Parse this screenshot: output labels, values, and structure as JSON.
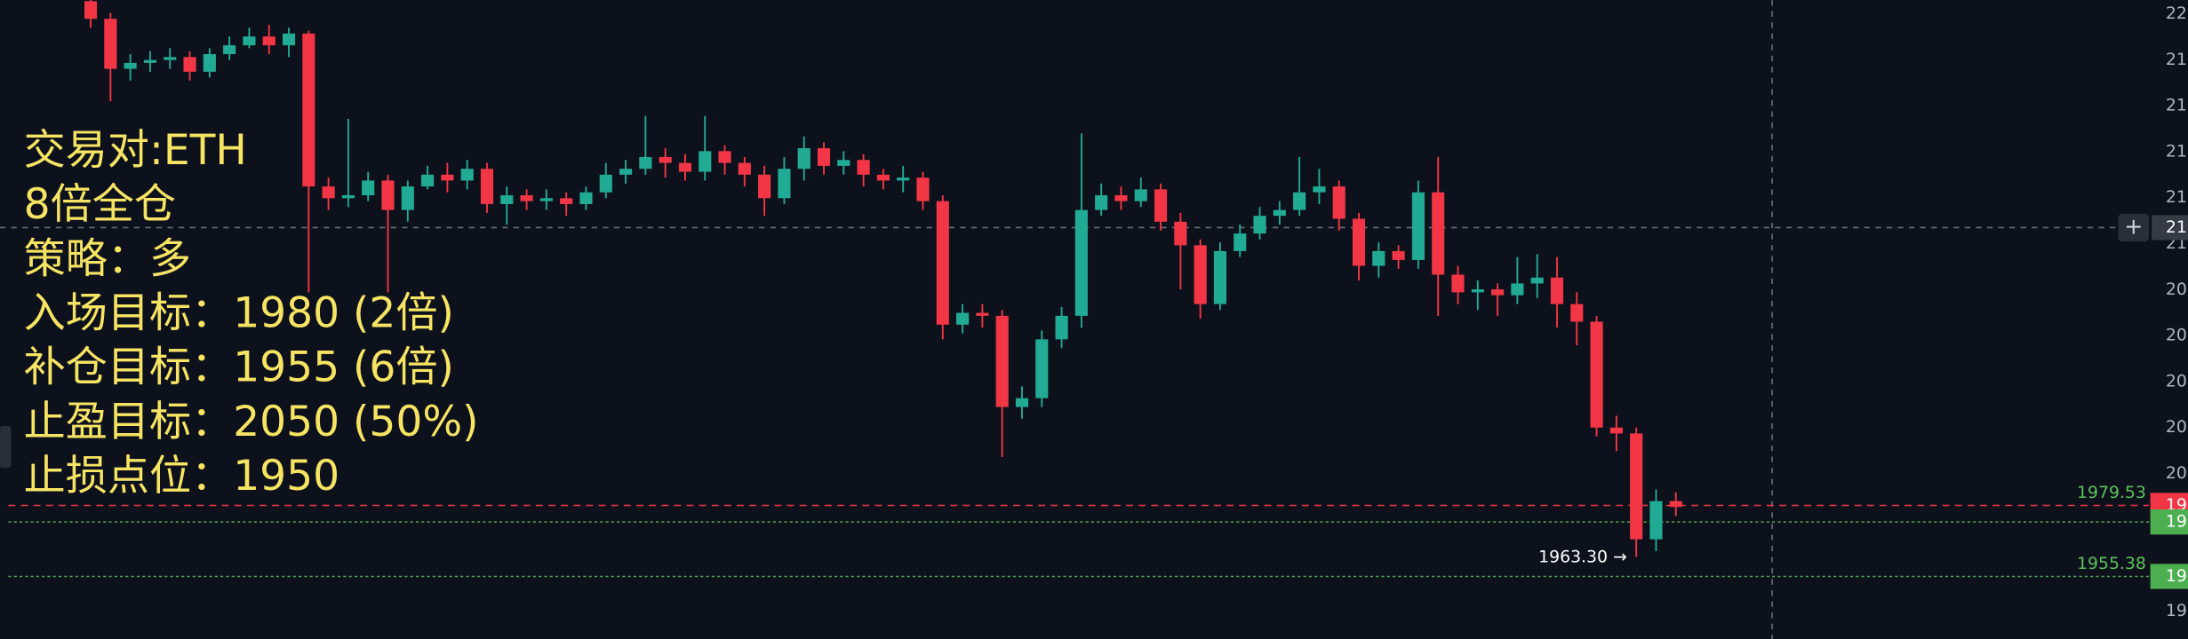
{
  "chart_data": {
    "type": "candlestick",
    "up_color": "#22ab94",
    "down_color": "#f23645",
    "ylim": [
      1934.1,
      2151.4
    ],
    "open": [
      2151,
      2145,
      2128,
      2130,
      2131,
      2132,
      2127,
      2133,
      2136,
      2139,
      2136,
      2140,
      2088,
      2084,
      2085,
      2090,
      2080,
      2088,
      2092,
      2090,
      2094,
      2082,
      2085,
      2083,
      2084,
      2082,
      2086,
      2092,
      2094,
      2098,
      2096,
      2093,
      2100,
      2096,
      2092,
      2084,
      2094,
      2101,
      2095,
      2097,
      2092,
      2090,
      2091,
      2083,
      2041,
      2045,
      2044,
      2013,
      2016,
      2036,
      2044,
      2080,
      2085,
      2083,
      2087,
      2076,
      2068,
      2048,
      2066,
      2072,
      2078,
      2080,
      2086,
      2088,
      2077,
      2061,
      2066,
      2063,
      2086,
      2058,
      2052,
      2053,
      2051,
      2055,
      2057,
      2048,
      2042,
      2006,
      2004,
      1968,
      1981
    ],
    "high": [
      2153,
      2147,
      2133,
      2134,
      2135,
      2134,
      2135,
      2139,
      2142,
      2143,
      2142,
      2141,
      2091,
      2111,
      2093,
      2092,
      2090,
      2095,
      2096,
      2097,
      2096,
      2088,
      2087,
      2087,
      2086,
      2088,
      2096,
      2097,
      2112,
      2101,
      2099,
      2112,
      2102,
      2098,
      2095,
      2098,
      2105,
      2103,
      2100,
      2099,
      2094,
      2095,
      2093,
      2085,
      2048,
      2048,
      2046,
      2020,
      2039,
      2047,
      2106,
      2089,
      2088,
      2091,
      2089,
      2079,
      2070,
      2069,
      2075,
      2081,
      2083,
      2098,
      2094,
      2090,
      2079,
      2069,
      2068,
      2090,
      2098,
      2061,
      2056,
      2055,
      2064,
      2065,
      2064,
      2052,
      2044,
      2010,
      2006,
      1985,
      1984
    ],
    "low": [
      2142,
      2117,
      2124,
      2127,
      2128,
      2124,
      2125,
      2131,
      2135,
      2133,
      2132,
      2052,
      2080,
      2081,
      2083,
      2052,
      2076,
      2087,
      2086,
      2087,
      2079,
      2075,
      2080,
      2080,
      2078,
      2080,
      2084,
      2089,
      2092,
      2091,
      2090,
      2090,
      2092,
      2088,
      2078,
      2082,
      2090,
      2092,
      2092,
      2088,
      2087,
      2086,
      2080,
      2036,
      2038,
      2040,
      1996,
      2009,
      2013,
      2033,
      2040,
      2078,
      2080,
      2081,
      2073,
      2053,
      2043,
      2046,
      2064,
      2070,
      2075,
      2078,
      2082,
      2073,
      2056,
      2057,
      2060,
      2060,
      2044,
      2048,
      2046,
      2044,
      2048,
      2050,
      2040,
      2034,
      2003,
      1998,
      1962,
      1964,
      1976
    ],
    "close": [
      2145,
      2128,
      2130,
      2131,
      2132,
      2127,
      2133,
      2136,
      2139,
      2136,
      2140,
      2088,
      2084,
      2085,
      2090,
      2080,
      2088,
      2092,
      2090,
      2094,
      2082,
      2085,
      2083,
      2084,
      2082,
      2086,
      2092,
      2094,
      2098,
      2096,
      2093,
      2100,
      2096,
      2092,
      2084,
      2094,
      2101,
      2095,
      2097,
      2092,
      2090,
      2091,
      2083,
      2041,
      2045,
      2044,
      2013,
      2016,
      2036,
      2044,
      2080,
      2085,
      2083,
      2087,
      2076,
      2068,
      2048,
      2066,
      2072,
      2078,
      2080,
      2086,
      2088,
      2077,
      2061,
      2066,
      2063,
      2086,
      2058,
      2052,
      2053,
      2051,
      2055,
      2057,
      2048,
      2042,
      2006,
      2004,
      1968,
      1981,
      1979
    ],
    "price_lines": [
      {
        "price": 1979.53,
        "label": "1979.53",
        "axis_label": "19",
        "color": "#f23645",
        "style": "dashed"
      },
      {
        "price": 1973.9,
        "axis_label": "19",
        "color": "#4caf50",
        "style": "dotted"
      },
      {
        "price": 1955.38,
        "label": "1955.38",
        "axis_label": "19",
        "color": "#4caf50",
        "style": "dotted"
      }
    ],
    "crosshair": {
      "price": 2074,
      "axis_label": "21"
    },
    "low_note": {
      "price": 1963.3,
      "label": "1963.30 →"
    },
    "axis_labels": [
      "22",
      "21",
      "21",
      "21",
      "21",
      "21",
      "20",
      "20",
      "20",
      "20",
      "20",
      null,
      null,
      "19"
    ]
  },
  "notes": [
    "交易对:ETH",
    "8倍全仓",
    "策略：多",
    "入场目标：1980 (2倍)",
    "补仓目标：1955 (6倍)",
    "止盈目标：2050 (50%)",
    "止损点位：1950"
  ]
}
